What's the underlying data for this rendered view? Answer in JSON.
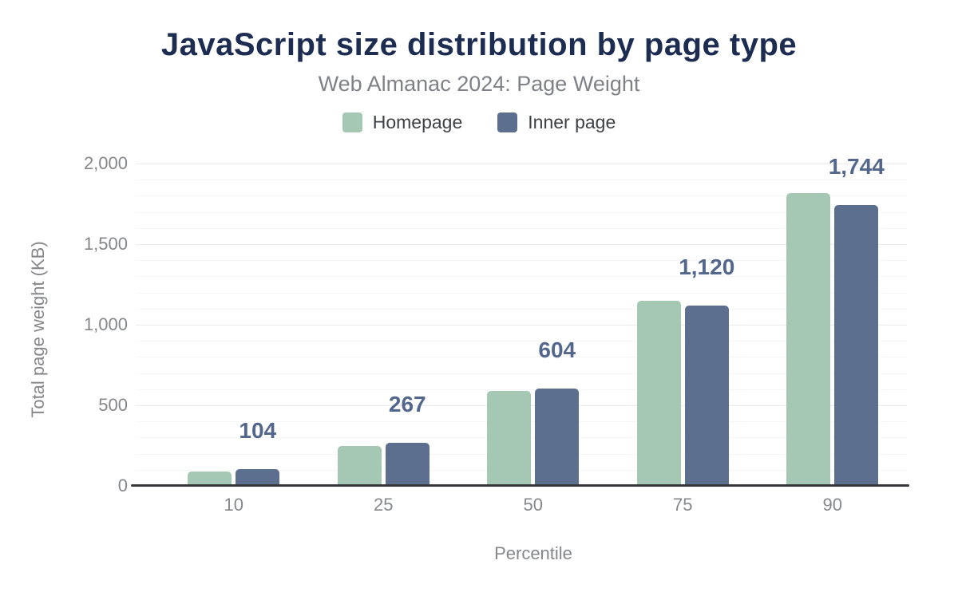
{
  "chart_data": {
    "type": "bar",
    "title": "JavaScript size distribution by page type",
    "subtitle": "Web Almanac 2024: Page Weight",
    "xlabel": "Percentile",
    "ylabel": "Total page weight (KB)",
    "categories": [
      "10",
      "25",
      "50",
      "75",
      "90"
    ],
    "series": [
      {
        "name": "Homepage",
        "color": "#a5c8b4",
        "values": [
          88,
          250,
          590,
          1147,
          1818
        ]
      },
      {
        "name": "Inner page",
        "color": "#5c6f8e",
        "values": [
          104,
          267,
          604,
          1120,
          1744
        ],
        "labels": [
          "104",
          "267",
          "604",
          "1,120",
          "1,744"
        ]
      }
    ],
    "ylim": [
      0,
      2000
    ],
    "yticks": [
      {
        "value": 0,
        "label": "0"
      },
      {
        "value": 500,
        "label": "500"
      },
      {
        "value": 1000,
        "label": "1,000"
      },
      {
        "value": 1500,
        "label": "1,500"
      },
      {
        "value": 2000,
        "label": "2,000"
      }
    ],
    "minor_grid_step": 100,
    "grid": true,
    "legend_position": "top",
    "colors": {
      "title": "#1d2d52",
      "subtitle": "#7e8187",
      "axis_text": "#85878a",
      "legend_text": "#3d4046",
      "bar_label": "#53678c",
      "grid_major": "#ebebec",
      "grid_minor": "#f5f6f6",
      "axis_line": "#37383a"
    }
  }
}
